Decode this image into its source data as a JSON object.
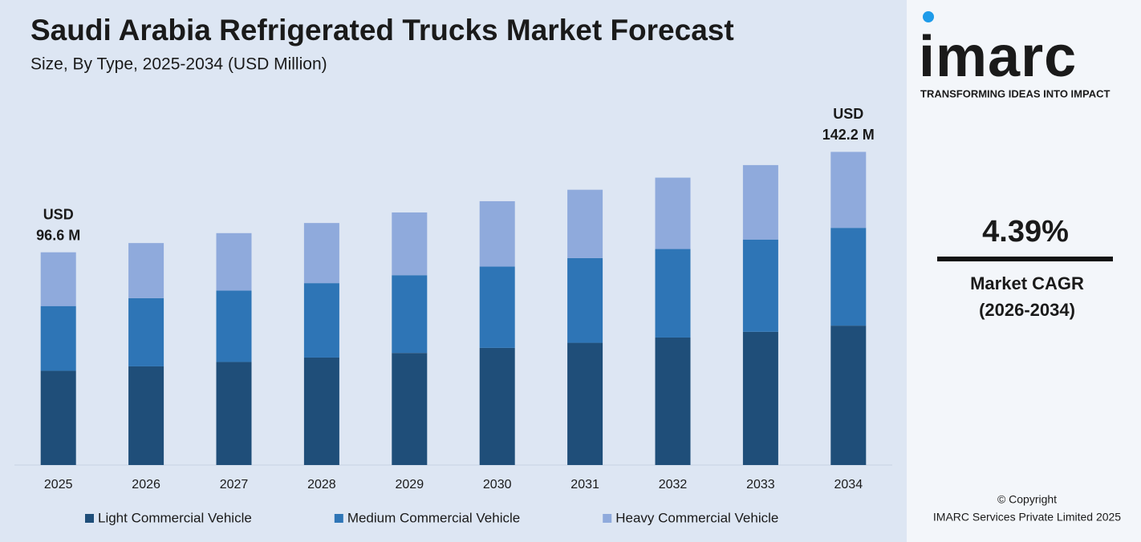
{
  "chart_data": {
    "type": "stacked_bar",
    "title": "Saudi Arabia Refrigerated Trucks Market Forecast",
    "subtitle": "Size, By Type, 2025-2034 (USD Million)",
    "categories": [
      "2025",
      "2026",
      "2027",
      "2028",
      "2029",
      "2030",
      "2031",
      "2032",
      "2033",
      "2034"
    ],
    "series": [
      {
        "name": "Light Commercial Vehicle",
        "color": "#1f4e79",
        "values": [
          42.8,
          44.8,
          46.8,
          48.8,
          50.9,
          53.2,
          55.5,
          57.9,
          60.5,
          63.3
        ]
      },
      {
        "name": "Medium Commercial Vehicle",
        "color": "#2e75b6",
        "values": [
          29.4,
          31.0,
          32.4,
          33.8,
          35.3,
          36.9,
          38.5,
          40.2,
          41.9,
          44.4
        ]
      },
      {
        "name": "Heavy Commercial Vehicle",
        "color": "#8faadc",
        "values": [
          24.4,
          25.0,
          26.1,
          27.3,
          28.5,
          29.7,
          31.0,
          32.4,
          33.8,
          34.5
        ]
      }
    ],
    "ylim": [
      0,
      150
    ],
    "annotations": [
      {
        "category": "2025",
        "text": [
          "USD",
          "96.6 M"
        ]
      },
      {
        "category": "2034",
        "text": [
          "USD",
          "142.2 M"
        ]
      }
    ],
    "legend": "bottom"
  },
  "sidebar": {
    "logo": "imarc",
    "tagline": "TRANSFORMING IDEAS INTO IMPACT",
    "cagr": "4.39%",
    "cagr_label": "Market CAGR",
    "cagr_period": "(2026-2034)",
    "copyright": "© Copyright",
    "company": "IMARC Services Private Limited 2025"
  }
}
